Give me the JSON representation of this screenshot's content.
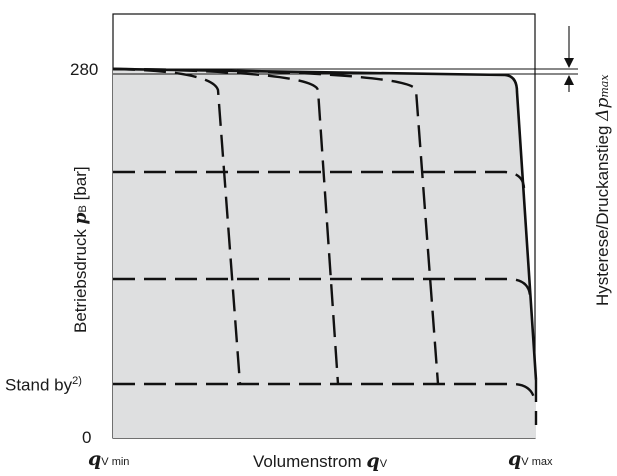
{
  "y_axis": {
    "label_text": "Betriebsdruck ",
    "label_symbol": "p",
    "label_subscript": "B",
    "label_unit": " [bar]",
    "tick_280": "280",
    "tick_zero": "0",
    "tick_standby": "Stand by",
    "tick_standby_sup": "2)"
  },
  "x_axis": {
    "label_text": "Volumenstrom ",
    "label_symbol": "q",
    "label_subscript": "V",
    "min_symbol": "q",
    "min_subscript": "V min",
    "max_symbol": "q",
    "max_subscript": "V max"
  },
  "hysteresis": {
    "label_text": "Hysterese/Druckanstieg ",
    "label_symbol": "Δp",
    "label_subscript": "max"
  },
  "colors": {
    "fill": "#dedfe0",
    "line": "#111111"
  }
}
